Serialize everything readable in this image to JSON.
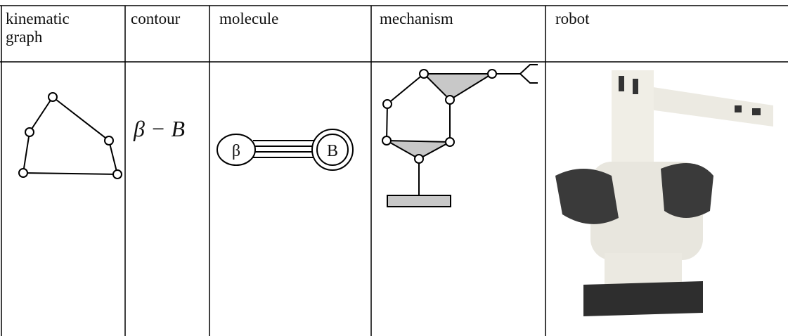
{
  "table": {
    "header": [
      "kinematic graph",
      "contour",
      "molecule",
      "mechanism",
      "robot"
    ],
    "contour_label": "β − B",
    "molecule_labels": [
      "β",
      "B"
    ]
  }
}
